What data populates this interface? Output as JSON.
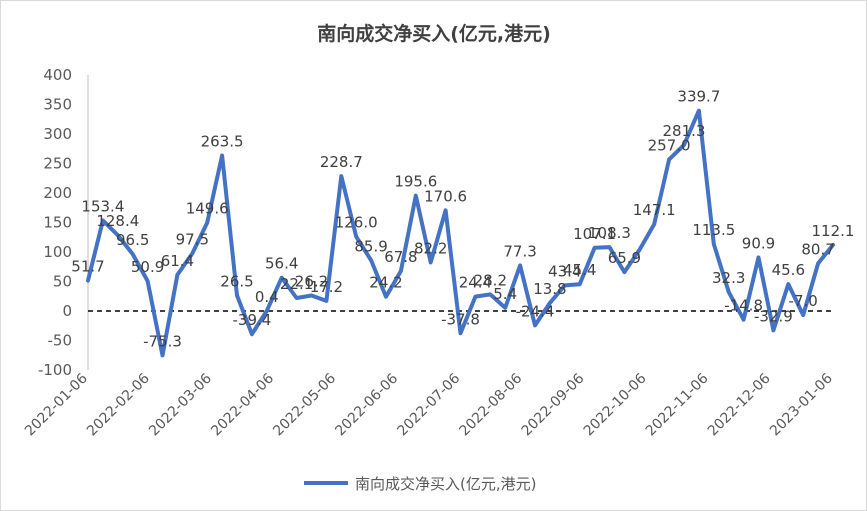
{
  "chart_data": {
    "type": "line",
    "title": "南向成交净买入(亿元,港元)",
    "xlabel": "",
    "ylabel": "",
    "ylim": [
      -100,
      400
    ],
    "yticks": [
      400,
      350,
      300,
      250,
      200,
      150,
      100,
      50,
      0,
      -50,
      -100
    ],
    "xtick_labels": [
      "2022-01-06",
      "2022-02-06",
      "2022-03-06",
      "2022-04-06",
      "2022-05-06",
      "2022-06-06",
      "2022-07-06",
      "2022-08-06",
      "2022-09-06",
      "2022-10-06",
      "2022-11-06",
      "2022-12-06",
      "2023-01-06"
    ],
    "legend_position": "bottom",
    "zero_line": "dashed",
    "grid": false,
    "series": [
      {
        "name": "南向成交净买入(亿元,港元)",
        "color": "#4472c4",
        "values": [
          51.7,
          153.4,
          128.4,
          96.5,
          50.9,
          -75.3,
          61.4,
          97.5,
          149.6,
          263.5,
          26.5,
          -39.4,
          0.4,
          56.4,
          22.1,
          26.2,
          17.2,
          228.7,
          126.0,
          85.9,
          24.2,
          67.8,
          195.6,
          82.2,
          170.6,
          -37.8,
          24.4,
          28.2,
          5.4,
          77.3,
          -24.4,
          13.8,
          43.4,
          45.4,
          107.1,
          108.3,
          65.9,
          103.3,
          147.1,
          257.0,
          281.3,
          339.7,
          113.5,
          32.3,
          -14.8,
          90.9,
          -32.9,
          45.6,
          -7.0,
          80.7,
          112.1
        ],
        "labels": [
          "51.7",
          "153.4",
          "128.4",
          "96.5",
          "50.9",
          "-75.3",
          "61.4",
          "97.5",
          "149.6",
          "263.5",
          "26.5",
          "-39.4",
          "0.4",
          "56.4",
          "22.1",
          "26.2",
          "17.2",
          "228.7",
          "126.0",
          "85.9",
          "24.2",
          "67.8",
          "195.6",
          "82.2",
          "170.6",
          "-37.8",
          "24.4",
          "28.2",
          "5.4",
          "77.3",
          "-24.4",
          "13.8",
          "43.4",
          "45.4",
          "107.1",
          "108.3",
          "65.9",
          "",
          "147.1",
          "257.0",
          "281.3",
          "339.7",
          "113.5",
          "32.3",
          "-14.8",
          "90.9",
          "-32.9",
          "45.6",
          "-7.0",
          "80.7",
          "112.1"
        ]
      }
    ]
  }
}
